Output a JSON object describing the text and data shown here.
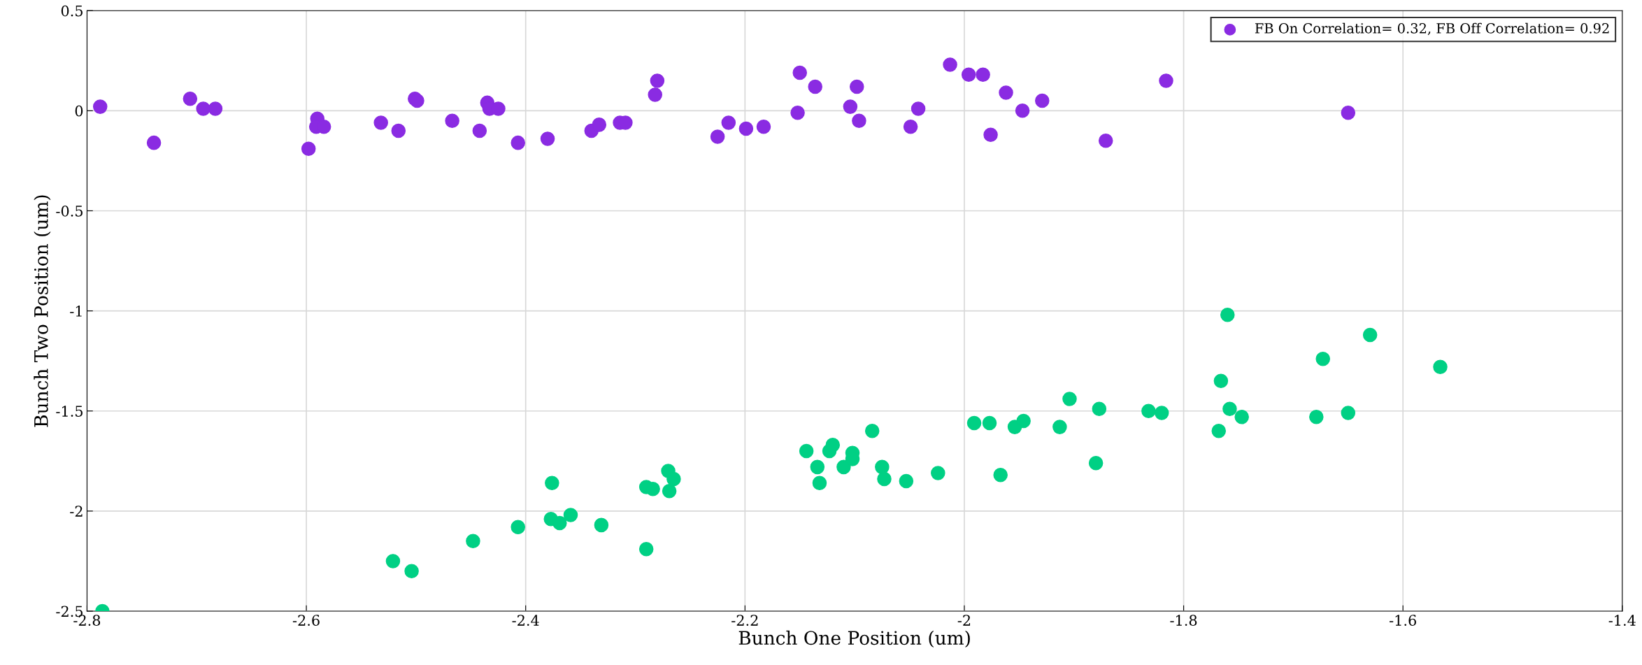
{
  "chart_data": {
    "type": "scatter",
    "xlabel": "Bunch One Position (um)",
    "ylabel": "Bunch Two Position (um)",
    "xlim": [
      -2.8,
      -1.4
    ],
    "xticks": [
      -2.8,
      -2.6,
      -2.4,
      -2.2,
      -2,
      -1.8,
      -1.6,
      -1.4
    ],
    "ylim": [
      -2.5,
      0.5
    ],
    "yticks": [
      -2.5,
      -2,
      -1.5,
      -1,
      -0.5,
      0,
      0.5
    ],
    "grid": true,
    "legend": "top right",
    "marker": "circle",
    "series": [
      {
        "name": "FB On Correlation= 0.32, FB Off Correlation= 0.92",
        "color": "#8a2be2",
        "x": [
          -2.788,
          -2.739,
          -2.706,
          -2.694,
          -2.683,
          -2.598,
          -2.59,
          -2.591,
          -2.584,
          -2.532,
          -2.516,
          -2.501,
          -2.499,
          -2.467,
          -2.442,
          -2.435,
          -2.433,
          -2.425,
          -2.407,
          -2.38,
          -2.34,
          -2.333,
          -2.314,
          -2.309,
          -2.282,
          -2.28,
          -2.225,
          -2.215,
          -2.199,
          -2.183,
          -2.152,
          -2.15,
          -2.136,
          -2.104,
          -2.098,
          -2.096,
          -2.049,
          -2.042,
          -2.013,
          -1.996,
          -1.983,
          -1.976,
          -1.962,
          -1.947,
          -1.929,
          -1.871,
          -1.816,
          -1.65
        ],
        "values": [
          0.02,
          -0.16,
          0.06,
          0.01,
          0.01,
          -0.19,
          -0.04,
          -0.08,
          -0.08,
          -0.06,
          -0.1,
          0.06,
          0.05,
          -0.05,
          -0.1,
          0.04,
          0.01,
          0.01,
          -0.16,
          -0.14,
          -0.1,
          -0.07,
          -0.06,
          -0.06,
          0.08,
          0.15,
          -0.13,
          -0.06,
          -0.09,
          -0.08,
          -0.01,
          0.19,
          0.12,
          0.02,
          0.12,
          -0.05,
          -0.08,
          0.01,
          0.23,
          0.18,
          0.18,
          -0.12,
          0.09,
          0.0,
          0.05,
          -0.15,
          0.15,
          -0.01
        ]
      },
      {
        "color": "#00d084",
        "x": [
          -2.786,
          -2.521,
          -2.504,
          -2.448,
          -2.407,
          -2.376,
          -2.377,
          -2.369,
          -2.359,
          -2.331,
          -2.29,
          -2.29,
          -2.284,
          -2.269,
          -2.27,
          -2.265,
          -2.144,
          -2.134,
          -2.132,
          -2.123,
          -2.12,
          -2.11,
          -2.102,
          -2.102,
          -2.084,
          -2.075,
          -2.073,
          -2.053,
          -2.024,
          -1.991,
          -1.977,
          -1.967,
          -1.954,
          -1.946,
          -1.913,
          -1.904,
          -1.88,
          -1.877,
          -1.832,
          -1.82,
          -1.768,
          -1.766,
          -1.76,
          -1.758,
          -1.747,
          -1.679,
          -1.65,
          -1.673,
          -1.63,
          -1.566
        ],
        "values": [
          -2.5,
          -2.25,
          -2.3,
          -2.15,
          -2.08,
          -1.86,
          -2.04,
          -2.06,
          -2.02,
          -2.07,
          -2.19,
          -1.88,
          -1.89,
          -1.9,
          -1.8,
          -1.84,
          -1.7,
          -1.78,
          -1.86,
          -1.7,
          -1.67,
          -1.78,
          -1.71,
          -1.74,
          -1.6,
          -1.78,
          -1.84,
          -1.85,
          -1.81,
          -1.56,
          -1.56,
          -1.82,
          -1.58,
          -1.55,
          -1.58,
          -1.44,
          -1.76,
          -1.49,
          -1.5,
          -1.51,
          -1.6,
          -1.35,
          -1.02,
          -1.49,
          -1.53,
          -1.53,
          -1.51,
          -1.24,
          -1.12,
          -1.28
        ]
      }
    ]
  }
}
